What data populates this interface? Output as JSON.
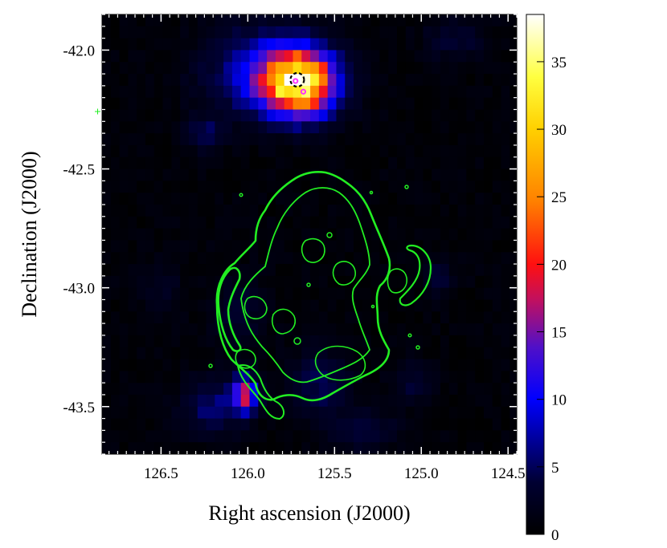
{
  "chart_data": {
    "type": "heatmap",
    "title": "",
    "xlabel": "Right ascension (J2000)",
    "ylabel": "Declination (J2000)",
    "x_range": [
      126.84,
      124.45
    ],
    "y_range": [
      -43.7,
      -41.85
    ],
    "x_ticks": [
      126.5,
      126.0,
      125.5,
      125.0,
      124.5
    ],
    "x_tick_labels": [
      "126.5",
      "126.0",
      "125.5",
      "125.0",
      "124.5"
    ],
    "y_ticks": [
      -42.0,
      -42.5,
      -43.0,
      -43.5
    ],
    "y_tick_labels": [
      "-42.0",
      "-42.5",
      "-43.0",
      "-43.5"
    ],
    "colorbar": {
      "min": 0,
      "max": 38.5,
      "ticks": [
        0,
        5,
        10,
        15,
        20,
        25,
        30,
        35
      ],
      "tick_labels": [
        "0",
        "5",
        "10",
        "15",
        "20",
        "25",
        "30",
        "35"
      ],
      "colormap": "heat (black-blue-magenta-red-orange-yellow-white)"
    },
    "grid": false,
    "pixel_size_deg": 0.05,
    "emission_regions": [
      {
        "ra": 125.7,
        "dec": -42.14,
        "sigma_ra": 0.14,
        "sigma_dec": 0.09,
        "peak": 33
      },
      {
        "ra": 125.9,
        "dec": -42.09,
        "sigma_ra": 0.22,
        "sigma_dec": 0.12,
        "peak": 9
      },
      {
        "ra": 126.02,
        "dec": -43.45,
        "sigma_ra": 0.05,
        "sigma_dec": 0.05,
        "peak": 17
      },
      {
        "ra": 126.2,
        "dec": -43.5,
        "sigma_ra": 0.12,
        "sigma_dec": 0.08,
        "peak": 5
      },
      {
        "ra": 125.58,
        "dec": -43.4,
        "sigma_ra": 0.12,
        "sigma_dec": 0.1,
        "peak": 4
      },
      {
        "ra": 126.25,
        "dec": -42.35,
        "sigma_ra": 0.08,
        "sigma_dec": 0.05,
        "peak": 4
      },
      {
        "ra": 124.8,
        "dec": -41.95,
        "sigma_ra": 0.12,
        "sigma_dec": 0.06,
        "peak": 3
      },
      {
        "ra": 126.05,
        "dec": -43.1,
        "sigma_ra": 0.1,
        "sigma_dec": 0.1,
        "peak": 3
      },
      {
        "ra": 125.05,
        "dec": -43.4,
        "sigma_ra": 0.08,
        "sigma_dec": 0.06,
        "peak": 3
      },
      {
        "ra": 124.9,
        "dec": -42.95,
        "sigma_ra": 0.06,
        "sigma_dec": 0.05,
        "peak": 3
      },
      {
        "ra": 125.35,
        "dec": -43.6,
        "sigma_ra": 0.15,
        "sigma_dec": 0.06,
        "peak": 3
      },
      {
        "ra": 126.5,
        "dec": -43.0,
        "sigma_ra": 0.08,
        "sigma_dec": 0.08,
        "peak": 2
      }
    ],
    "contour_color": "#22ee22",
    "markers": [
      {
        "type": "dashed-circle",
        "ra": 125.715,
        "dec": -42.125,
        "color": "#000000"
      },
      {
        "type": "small-circle",
        "ra": 125.725,
        "dec": -42.13,
        "color": "#ff33ff"
      },
      {
        "type": "small-circle",
        "ra": 125.68,
        "dec": -42.175,
        "color": "#ff33ff"
      }
    ]
  }
}
